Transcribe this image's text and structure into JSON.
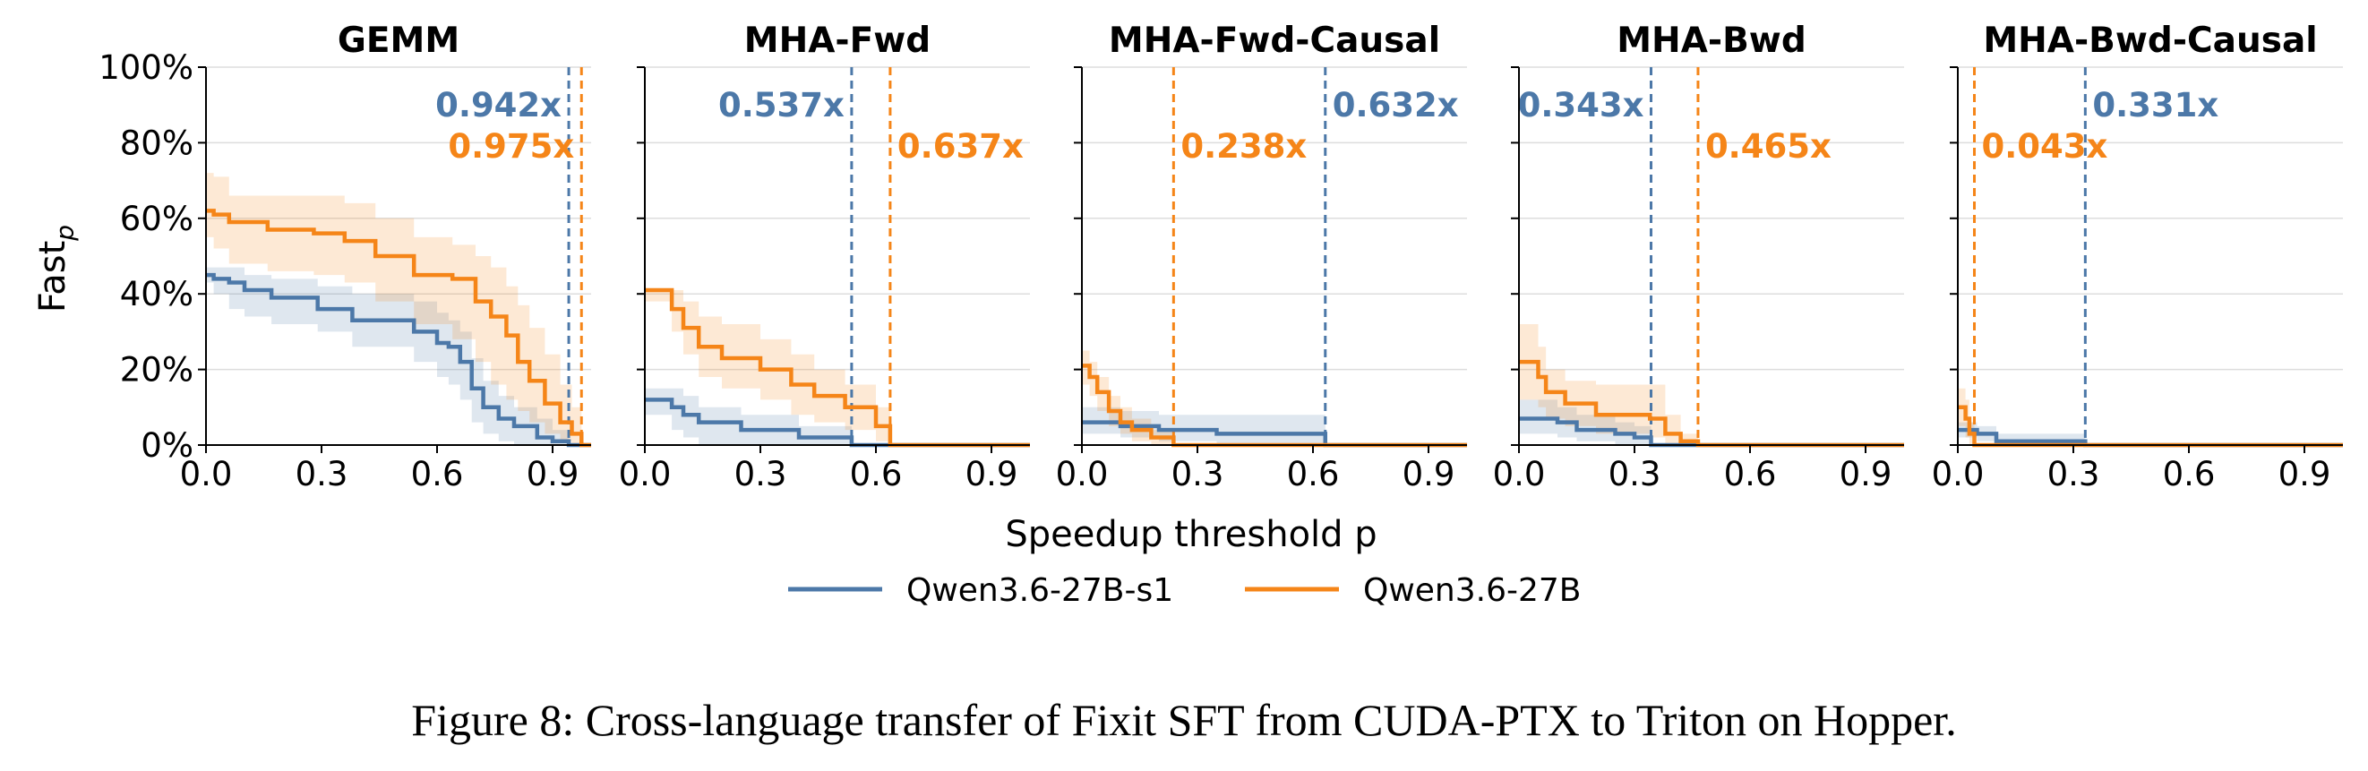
{
  "caption": "Figure 8: Cross-language transfer of Fixit SFT from CUDA-PTX to Triton on Hopper.",
  "colors": {
    "s1": "#4c78a8",
    "base": "#f58518",
    "grid": "#dddddd",
    "axis": "#000000"
  },
  "chart_data": {
    "type": "line",
    "xlabel": "Speedup threshold p",
    "ylabel": "Fast",
    "ylabel_subscript": "p",
    "xticks": [
      0.0,
      0.3,
      0.6,
      0.9
    ],
    "xtick_labels": [
      "0.0",
      "0.3",
      "0.6",
      "0.9"
    ],
    "yticks": [
      0,
      20,
      40,
      60,
      80,
      100
    ],
    "ytick_labels": [
      "0%",
      "20%",
      "40%",
      "60%",
      "80%",
      "100%"
    ],
    "xlim": [
      0,
      1.0
    ],
    "ylim": [
      0,
      100
    ],
    "grid": "horizontal",
    "legend": {
      "position": "bottom-center",
      "entries": [
        {
          "name": "Qwen3.6-27B-s1",
          "color": "#4c78a8"
        },
        {
          "name": "Qwen3.6-27B",
          "color": "#f58518"
        }
      ]
    },
    "panels": [
      {
        "title": "GEMM",
        "series": [
          {
            "name": "Qwen3.6-27B-s1",
            "color": "#4c78a8",
            "threshold": 0.942,
            "threshold_label": "0.942x",
            "x": [
              0.0,
              0.02,
              0.06,
              0.1,
              0.17,
              0.29,
              0.38,
              0.54,
              0.6,
              0.63,
              0.66,
              0.69,
              0.72,
              0.76,
              0.8,
              0.86,
              0.9,
              0.942
            ],
            "y": [
              45,
              44,
              43,
              41,
              39,
              36,
              33,
              30,
              27,
              26,
              22,
              15,
              10,
              7,
              5,
              2,
              1,
              0
            ],
            "upper": [
              47,
              47,
              47,
              45,
              44,
              42,
              40,
              38,
              35,
              33,
              30,
              23,
              17,
              13,
              10,
              7,
              4,
              1
            ],
            "lower": [
              43,
              40,
              36,
              34,
              32,
              30,
              26,
              22,
              18,
              16,
              12,
              6,
              3,
              1,
              0,
              0,
              0,
              0
            ]
          },
          {
            "name": "Qwen3.6-27B",
            "color": "#f58518",
            "threshold": 0.975,
            "threshold_label": "0.975x",
            "x": [
              0.0,
              0.02,
              0.06,
              0.16,
              0.28,
              0.36,
              0.44,
              0.54,
              0.64,
              0.7,
              0.74,
              0.78,
              0.81,
              0.84,
              0.88,
              0.92,
              0.95,
              0.975
            ],
            "y": [
              62,
              61,
              59,
              57,
              56,
              54,
              50,
              45,
              44,
              38,
              34,
              29,
              22,
              17,
              11,
              6,
              3,
              0
            ],
            "upper": [
              72,
              71,
              66,
              66,
              66,
              64,
              60,
              55,
              53,
              50,
              47,
              42,
              37,
              31,
              24,
              16,
              10,
              2
            ],
            "lower": [
              55,
              52,
              48,
              46,
              45,
              43,
              38,
              32,
              28,
              22,
              16,
              12,
              9,
              6,
              3,
              1,
              0,
              0
            ]
          }
        ]
      },
      {
        "title": "MHA-Fwd",
        "series": [
          {
            "name": "Qwen3.6-27B-s1",
            "color": "#4c78a8",
            "threshold": 0.537,
            "threshold_label": "0.537x",
            "x": [
              0.0,
              0.07,
              0.1,
              0.14,
              0.25,
              0.4,
              0.537
            ],
            "y": [
              12,
              10,
              8,
              6,
              4,
              2,
              0
            ],
            "upper": [
              15,
              15,
              13,
              10,
              8,
              5,
              2
            ],
            "lower": [
              8,
              4,
              2,
              0,
              0,
              0,
              0
            ]
          },
          {
            "name": "Qwen3.6-27B",
            "color": "#f58518",
            "threshold": 0.637,
            "threshold_label": "0.637x",
            "x": [
              0.0,
              0.07,
              0.1,
              0.14,
              0.2,
              0.3,
              0.38,
              0.44,
              0.52,
              0.6,
              0.637
            ],
            "y": [
              41,
              36,
              31,
              26,
              23,
              20,
              16,
              13,
              10,
              5,
              0
            ],
            "upper": [
              41,
              41,
              38,
              34,
              32,
              28,
              24,
              20,
              16,
              10,
              2
            ],
            "lower": [
              38,
              30,
              24,
              18,
              15,
              12,
              8,
              6,
              4,
              1,
              0
            ]
          }
        ]
      },
      {
        "title": "MHA-Fwd-Causal",
        "series": [
          {
            "name": "Qwen3.6-27B-s1",
            "color": "#4c78a8",
            "threshold": 0.632,
            "threshold_label": "0.632x",
            "x": [
              0.0,
              0.1,
              0.2,
              0.35,
              0.5,
              0.632
            ],
            "y": [
              6,
              5,
              4,
              3,
              3,
              0
            ],
            "upper": [
              10,
              9,
              8,
              8,
              8,
              2
            ],
            "lower": [
              3,
              2,
              1,
              0,
              0,
              0
            ]
          },
          {
            "name": "Qwen3.6-27B",
            "color": "#f58518",
            "threshold": 0.238,
            "threshold_label": "0.238x",
            "x": [
              0.0,
              0.02,
              0.04,
              0.07,
              0.1,
              0.13,
              0.18,
              0.238
            ],
            "y": [
              21,
              18,
              14,
              9,
              6,
              4,
              2,
              0
            ],
            "upper": [
              25,
              22,
              18,
              13,
              10,
              7,
              4,
              1
            ],
            "lower": [
              16,
              13,
              9,
              5,
              3,
              1,
              0,
              0
            ]
          }
        ]
      },
      {
        "title": "MHA-Bwd",
        "series": [
          {
            "name": "Qwen3.6-27B-s1",
            "color": "#4c78a8",
            "threshold": 0.343,
            "threshold_label": "0.343x",
            "x": [
              0.0,
              0.1,
              0.15,
              0.25,
              0.3,
              0.343
            ],
            "y": [
              7,
              6,
              4,
              3,
              2,
              0
            ],
            "upper": [
              12,
              10,
              8,
              6,
              5,
              2
            ],
            "lower": [
              3,
              2,
              1,
              0,
              0,
              0
            ]
          },
          {
            "name": "Qwen3.6-27B",
            "color": "#f58518",
            "threshold": 0.465,
            "threshold_label": "0.465x",
            "x": [
              0.0,
              0.05,
              0.07,
              0.12,
              0.2,
              0.34,
              0.38,
              0.42,
              0.465
            ],
            "y": [
              22,
              18,
              14,
              11,
              8,
              7,
              3,
              1,
              0
            ],
            "upper": [
              32,
              26,
              20,
              17,
              16,
              16,
              8,
              3,
              1
            ],
            "lower": [
              12,
              10,
              7,
              5,
              3,
              2,
              0,
              0,
              0
            ]
          }
        ]
      },
      {
        "title": "MHA-Bwd-Causal",
        "series": [
          {
            "name": "Qwen3.6-27B-s1",
            "color": "#4c78a8",
            "threshold": 0.331,
            "threshold_label": "0.331x",
            "x": [
              0.0,
              0.05,
              0.1,
              0.331
            ],
            "y": [
              4,
              3,
              1,
              0
            ],
            "upper": [
              6,
              5,
              3,
              1
            ],
            "lower": [
              2,
              1,
              0,
              0
            ]
          },
          {
            "name": "Qwen3.6-27B",
            "color": "#f58518",
            "threshold": 0.043,
            "threshold_label": "0.043x",
            "x": [
              0.0,
              0.02,
              0.03,
              0.043
            ],
            "y": [
              10,
              7,
              3,
              0
            ],
            "upper": [
              15,
              12,
              6,
              1
            ],
            "lower": [
              5,
              2,
              0,
              0
            ]
          }
        ]
      }
    ]
  }
}
